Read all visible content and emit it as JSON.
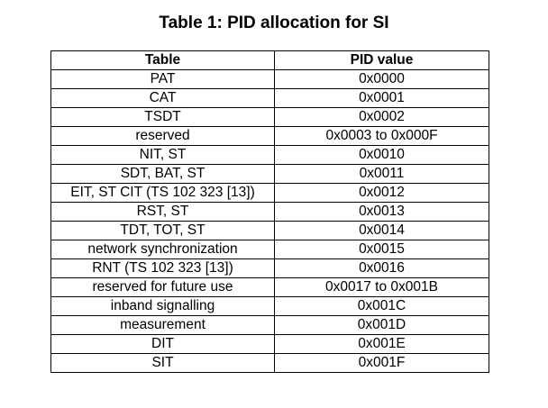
{
  "caption": "Table 1: PID allocation for SI",
  "table": {
    "headers": [
      "Table",
      "PID value"
    ],
    "rows": [
      [
        "PAT",
        "0x0000"
      ],
      [
        "CAT",
        "0x0001"
      ],
      [
        "TSDT",
        "0x0002"
      ],
      [
        "reserved",
        "0x0003 to 0x000F"
      ],
      [
        "NIT, ST",
        "0x0010"
      ],
      [
        "SDT, BAT, ST",
        "0x0011"
      ],
      [
        "EIT, ST CIT (TS 102 323 [13])",
        "0x0012"
      ],
      [
        "RST, ST",
        "0x0013"
      ],
      [
        "TDT, TOT, ST",
        "0x0014"
      ],
      [
        "network synchronization",
        "0x0015"
      ],
      [
        "RNT (TS 102 323 [13])",
        "0x0016"
      ],
      [
        "reserved for future use",
        "0x0017 to 0x001B"
      ],
      [
        "inband signalling",
        "0x001C"
      ],
      [
        "measurement",
        "0x001D"
      ],
      [
        "DIT",
        "0x001E"
      ],
      [
        "SIT",
        "0x001F"
      ]
    ]
  }
}
